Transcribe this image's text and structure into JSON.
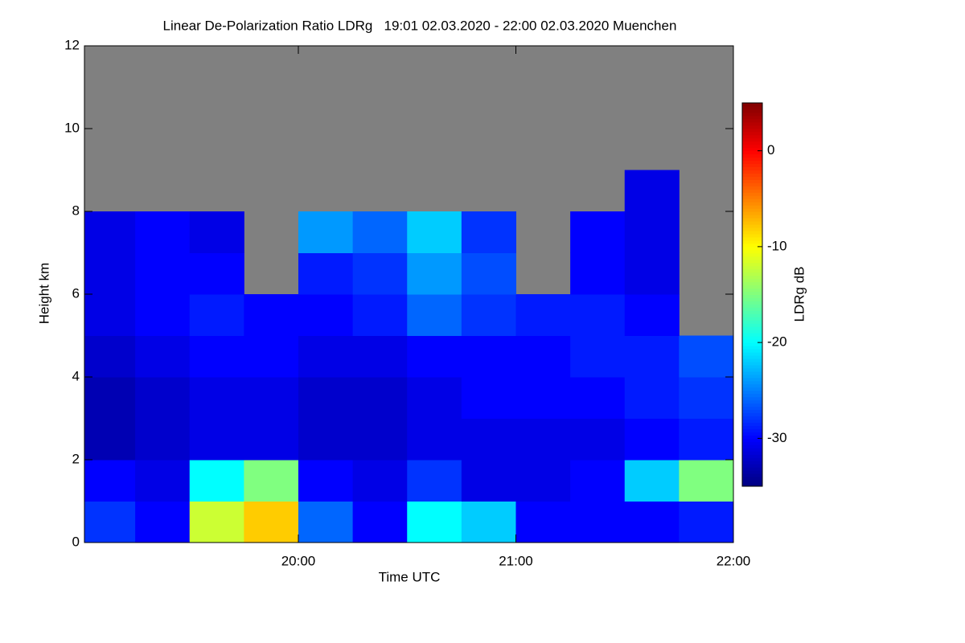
{
  "chart_data": {
    "type": "heatmap",
    "title": "Linear De-Polarization Ratio LDRg   19:01 02.03.2020 - 22:00 02.03.2020 Muenchen",
    "x_label": "Time UTC",
    "y_label": "Height km",
    "colorbar_label": "LDRg dB",
    "colormap": "jet",
    "background_color": "#808080",
    "x_bins": [
      19.0167,
      19.25,
      19.5,
      19.75,
      20,
      20.25,
      20.5,
      20.75,
      21,
      21.25,
      21.5,
      21.75,
      22
    ],
    "y_bins": [
      0,
      1,
      2,
      3,
      4,
      5,
      6,
      7,
      8,
      9,
      10,
      11,
      12
    ],
    "values": [
      [
        -28,
        -30,
        -12,
        -8,
        -26,
        -30,
        -20,
        -22,
        -30,
        -30,
        -30,
        -29
      ],
      [
        -30,
        -31,
        -20,
        -15,
        -30,
        -31,
        -28,
        -31,
        -31,
        -30,
        -22,
        -15
      ],
      [
        -33,
        -32,
        -31,
        -31,
        -32,
        -32,
        -31,
        -31,
        -31,
        -31,
        -30,
        -29
      ],
      [
        -33,
        -32,
        -31,
        -31,
        -32,
        -32,
        -31,
        -30,
        -30,
        -30,
        -29,
        -28
      ],
      [
        -32,
        -31,
        -30,
        -30,
        -31,
        -31,
        -30,
        -30,
        -30,
        -29,
        -29,
        -27
      ],
      [
        -31,
        -30,
        -29,
        -30,
        -30,
        -29,
        -26,
        -28,
        -29,
        -29,
        -30,
        null
      ],
      [
        -31,
        -30,
        -30,
        null,
        -29,
        -28,
        -24,
        -27,
        null,
        -30,
        -31,
        null
      ],
      [
        -31,
        -30,
        -31,
        null,
        -24,
        -26,
        -22,
        -28,
        null,
        -30,
        -31,
        null
      ],
      [
        null,
        null,
        null,
        null,
        null,
        null,
        null,
        null,
        null,
        null,
        -31,
        null
      ],
      [
        null,
        null,
        null,
        null,
        null,
        null,
        null,
        null,
        null,
        null,
        null,
        null
      ],
      [
        null,
        null,
        null,
        null,
        null,
        null,
        null,
        null,
        null,
        null,
        null,
        null
      ],
      [
        null,
        null,
        null,
        null,
        null,
        null,
        null,
        null,
        null,
        null,
        null,
        null
      ]
    ],
    "xlim": [
      19.0167,
      22
    ],
    "xticks": [
      {
        "value": 20,
        "label": "20:00"
      },
      {
        "value": 21,
        "label": "21:00"
      },
      {
        "value": 22,
        "label": "22:00"
      }
    ],
    "ylim": [
      0,
      12
    ],
    "yticks": [
      0,
      2,
      4,
      6,
      8,
      10,
      12
    ],
    "clim": [
      -35,
      5
    ],
    "cticks": [
      0,
      -10,
      -20,
      -30
    ]
  }
}
